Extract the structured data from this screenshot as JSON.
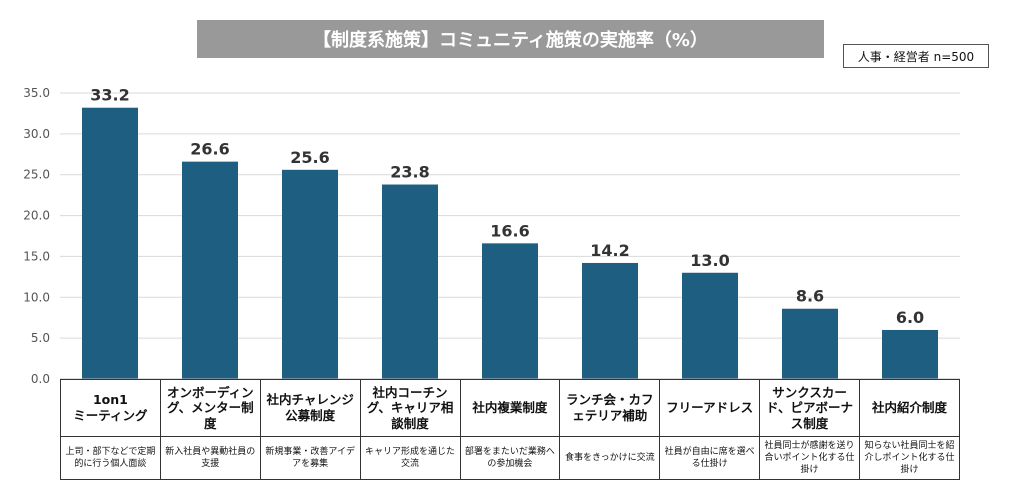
{
  "header": {
    "title": "【制度系施策】コミュニティ施策の実施率（%）",
    "sample_note": "人事・経営者 n=500"
  },
  "chart_data": {
    "type": "bar",
    "title": "【制度系施策】コミュニティ施策の実施率（%）",
    "ylim": [
      0,
      35
    ],
    "yticks": [
      "0.0",
      "5.0",
      "10.0",
      "15.0",
      "20.0",
      "25.0",
      "30.0",
      "35.0"
    ],
    "grid": true,
    "bar_color": "#1e5e80",
    "categories": [
      "1on1 ミーティング",
      "オンボーディング、メンター制度",
      "社内チャレンジ公募制度",
      "社内コーチング、キャリア相談制度",
      "社内複業制度",
      "ランチ会・カフェテリア補助",
      "フリーアドレス",
      "サンクスカード、ピアボーナス制度",
      "社内紹介制度"
    ],
    "values": [
      33.2,
      26.6,
      25.6,
      23.8,
      16.6,
      14.2,
      13.0,
      8.6,
      6.0
    ],
    "value_labels": [
      "33.2",
      "26.6",
      "25.6",
      "23.8",
      "16.6",
      "14.2",
      "13.0",
      "8.6",
      "6.0"
    ]
  },
  "table": {
    "names": [
      "1on1\nミーティング",
      "オンボーディング、メンター制度",
      "社内チャレンジ公募制度",
      "社内コーチング、キャリア相談制度",
      "社内複業制度",
      "ランチ会・カフェテリア補助",
      "フリーアドレス",
      "サンクスカード、ピアボーナス制度",
      "社内紹介制度"
    ],
    "descriptions": [
      "上司・部下などで定期的に行う個人面談",
      "新入社員や異動社員の支援",
      "新規事業・改善アイデアを募集",
      "キャリア形成を通じた交流",
      "部署をまたいだ業務への参加機会",
      "食事をきっかけに交流",
      "社員が自由に席を選べる仕掛け",
      "社員同士が感謝を送り合いポイント化する仕掛け",
      "知らない社員同士を紹介しポイント化する仕掛け"
    ]
  }
}
